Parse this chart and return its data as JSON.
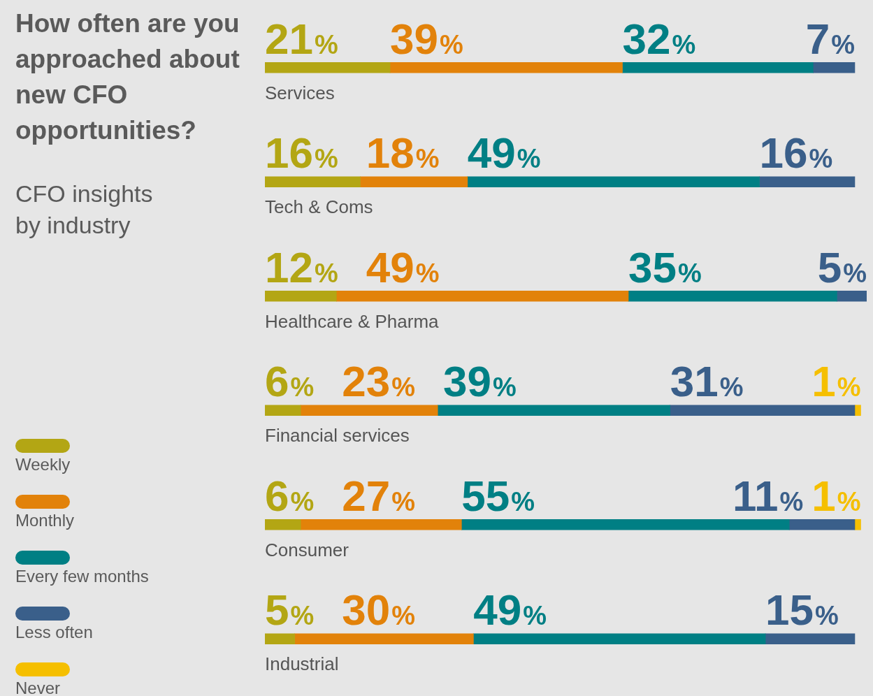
{
  "chart_data": {
    "type": "bar",
    "title": "How often are you approached about new CFO opportunities?",
    "subtitle": "CFO insights by industry",
    "orientation": "horizontal",
    "stacked": true,
    "legend": "left",
    "grid": false,
    "tick_labels": "y",
    "xlim": [
      0,
      101
    ],
    "categories": [
      "Services",
      "Tech & Coms",
      "Healthcare & Pharma",
      "Financial services",
      "Consumer",
      "Industrial"
    ],
    "series": [
      {
        "name": "Weekly",
        "color": "#b3a614",
        "values": [
          21,
          16,
          12,
          6,
          6,
          5
        ],
        "value_labels": [
          "21%",
          "16%",
          "12%",
          "6%",
          "6%",
          "5%"
        ]
      },
      {
        "name": "Monthly",
        "color": "#e2820a",
        "values": [
          39,
          18,
          49,
          23,
          27,
          30
        ],
        "value_labels": [
          "39%",
          "18%",
          "49%",
          "23%",
          "27%",
          "30%"
        ]
      },
      {
        "name": "Every few months",
        "color": "#007f84",
        "values": [
          32,
          49,
          35,
          39,
          55,
          49
        ],
        "value_labels": [
          "32%",
          "49%",
          "35%",
          "39%",
          "55%",
          "49%"
        ]
      },
      {
        "name": "Less often",
        "color": "#3a5f8a",
        "values": [
          7,
          16,
          5,
          31,
          11,
          15
        ],
        "value_labels": [
          "7%",
          "16%",
          "5%",
          "31%",
          "11%",
          "15%"
        ]
      },
      {
        "name": "Never",
        "color": "#f5bf00",
        "values": [
          null,
          null,
          null,
          1,
          1,
          null
        ],
        "value_labels": [
          null,
          null,
          null,
          "1%",
          "1%",
          null
        ]
      }
    ]
  }
}
